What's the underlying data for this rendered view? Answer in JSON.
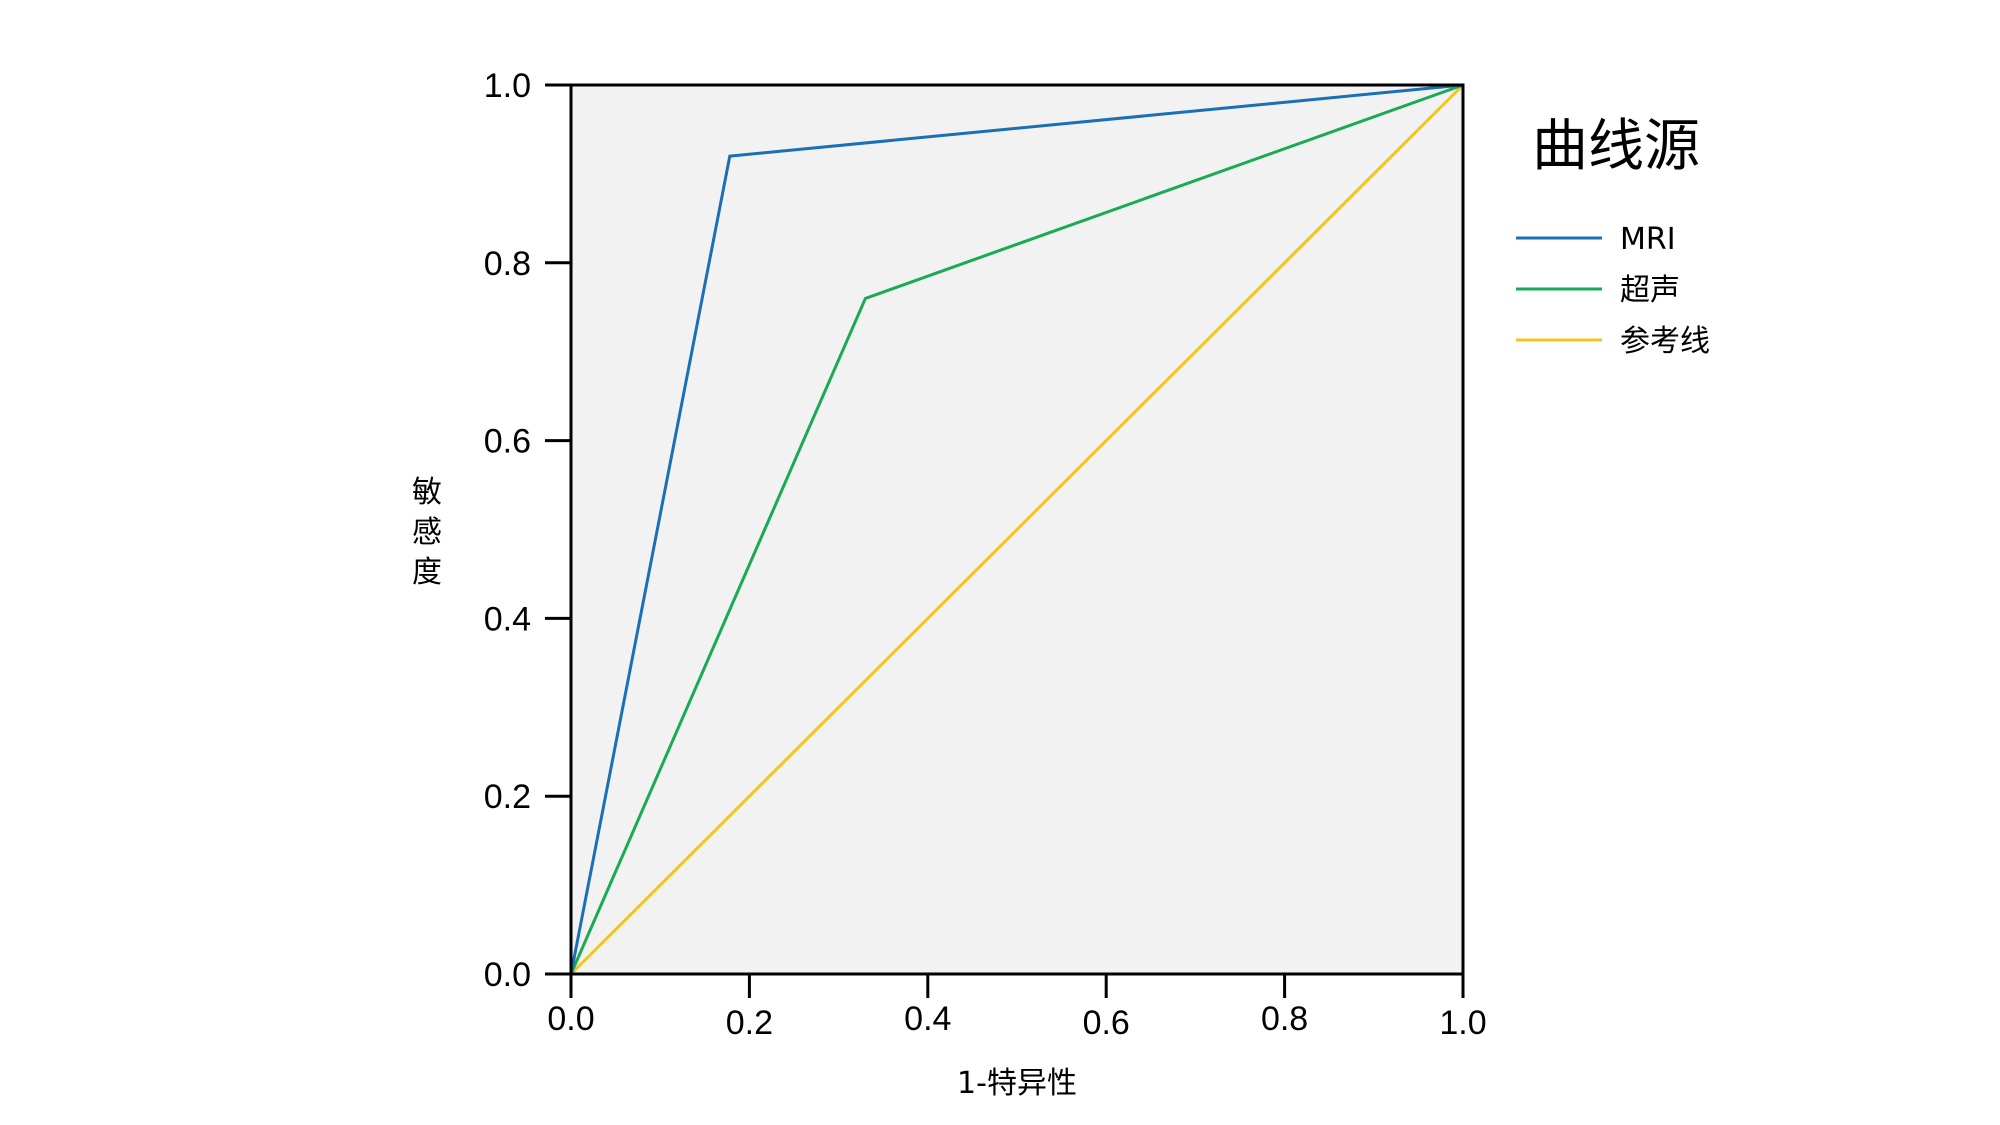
{
  "chart_data": {
    "type": "line",
    "xlabel": "1-特异性",
    "ylabel": "敏感度",
    "xlim": [
      0,
      1
    ],
    "ylim": [
      0,
      1
    ],
    "x_ticks": [
      "0.0",
      "0.2",
      "0.4",
      "0.6",
      "0.8",
      "1.0"
    ],
    "y_ticks": [
      "0.0",
      "0.2",
      "0.4",
      "0.6",
      "0.8",
      "1.0"
    ],
    "grid": false,
    "legend": {
      "title": "曲线源",
      "position": "right"
    },
    "series": [
      {
        "name": "MRI",
        "color": "#1a6fb5",
        "x": [
          0.0,
          0.178,
          1.0
        ],
        "y": [
          0.0,
          0.92,
          1.0
        ]
      },
      {
        "name": "超声",
        "color": "#1aaa55",
        "x": [
          0.0,
          0.33,
          1.0
        ],
        "y": [
          0.0,
          0.76,
          1.0
        ]
      },
      {
        "name": "参考线",
        "color": "#f5c518",
        "x": [
          0.0,
          1.0
        ],
        "y": [
          0.0,
          1.0
        ]
      }
    ]
  }
}
